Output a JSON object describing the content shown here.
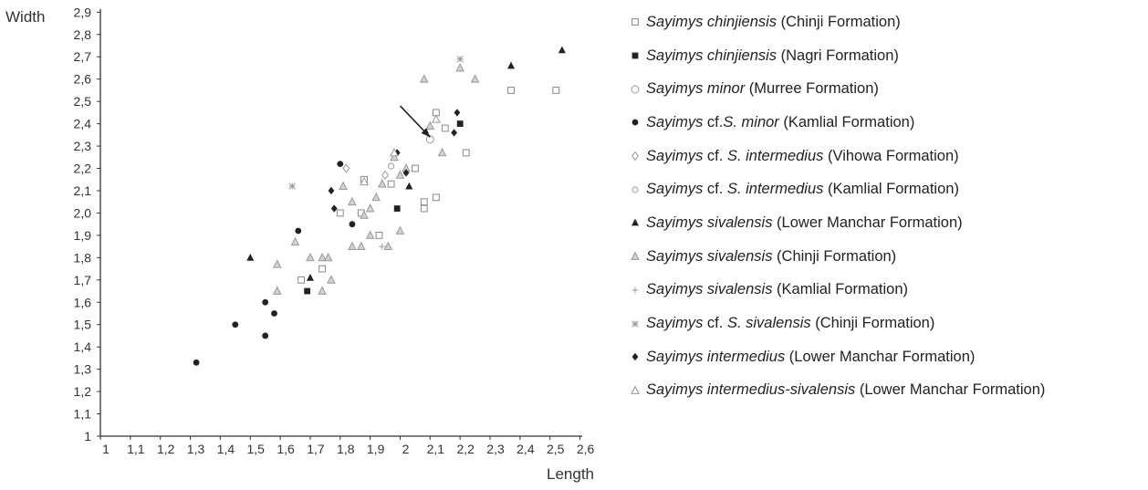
{
  "chart_data": {
    "type": "scatter",
    "xlabel": "Length",
    "ylabel": "Width",
    "xlim": [
      1,
      2.65
    ],
    "ylim": [
      1,
      2.93
    ],
    "x_ticks": [
      "1",
      "1,1",
      "1,2",
      "1,3",
      "1,4",
      "1,5",
      "1,6",
      "1,7",
      "1,8",
      "1,9",
      "2",
      "2,1",
      "2,2",
      "2,3",
      "2,4",
      "2,5",
      "2,6"
    ],
    "y_ticks": [
      "1",
      "1,1",
      "1,2",
      "1,3",
      "1,4",
      "1,5",
      "1,6",
      "1,7",
      "1,8",
      "1,9",
      "2,0",
      "2,1",
      "2,2",
      "2,3",
      "2,4",
      "2,5",
      "2,6",
      "2,7",
      "2,8",
      "2,9"
    ],
    "grid": false,
    "legend_position": "right",
    "arrow": {
      "from": [
        2.0,
        2.48
      ],
      "to": [
        2.1,
        2.34
      ]
    },
    "series": [
      {
        "species": "Sayimys chinjiensis",
        "rest": " (Chinji Formation)",
        "marker": "square-open",
        "color": "#888888",
        "points": [
          [
            1.67,
            1.7
          ],
          [
            1.74,
            1.75
          ],
          [
            1.8,
            2.0
          ],
          [
            1.87,
            2.0
          ],
          [
            1.88,
            2.15
          ],
          [
            1.93,
            1.9
          ],
          [
            1.97,
            2.13
          ],
          [
            2.05,
            2.2
          ],
          [
            2.08,
            2.05
          ],
          [
            2.08,
            2.02
          ],
          [
            2.12,
            2.07
          ],
          [
            2.12,
            2.45
          ],
          [
            2.15,
            2.38
          ],
          [
            2.22,
            2.27
          ],
          [
            2.37,
            2.55
          ],
          [
            2.52,
            2.55
          ]
        ]
      },
      {
        "species": "Sayimys chinjiensis",
        "rest": " (Nagri Formation)",
        "marker": "square-filled",
        "color": "#222222",
        "points": [
          [
            1.69,
            1.65
          ],
          [
            1.99,
            2.02
          ],
          [
            2.2,
            2.4
          ]
        ]
      },
      {
        "species": "Sayimys minor",
        "rest": " (Murree Formation)",
        "marker": "circle-open",
        "color": "#999999",
        "points": [
          [
            2.1,
            2.33
          ]
        ]
      },
      {
        "species": "Sayimys",
        "mid": " cf.",
        "species2": "S. minor",
        "rest": " (Kamlial Formation)",
        "marker": "circle-filled",
        "color": "#222222",
        "points": [
          [
            1.32,
            1.33
          ],
          [
            1.45,
            1.5
          ],
          [
            1.55,
            1.45
          ],
          [
            1.55,
            1.6
          ],
          [
            1.58,
            1.55
          ],
          [
            1.66,
            1.92
          ],
          [
            1.8,
            2.22
          ],
          [
            1.84,
            1.95
          ]
        ]
      },
      {
        "species": "Sayimys",
        "mid": " cf. ",
        "species2": "S. intermedius",
        "rest": " (Vihowa Formation)",
        "marker": "diamond-open",
        "color": "#999999",
        "points": [
          [
            1.82,
            2.2
          ],
          [
            1.95,
            2.17
          ]
        ]
      },
      {
        "species": "Sayimys",
        "mid": " cf. ",
        "species2": "S. intermedius",
        "rest": " (Kamlial Formation)",
        "marker": "circle-open-small",
        "color": "#999999",
        "points": [
          [
            1.97,
            2.21
          ]
        ]
      },
      {
        "species": "Sayimys sivalensis",
        "rest": " (Lower Manchar Formation)",
        "marker": "triangle-filled",
        "color": "#222222",
        "points": [
          [
            1.5,
            1.8
          ],
          [
            1.7,
            1.71
          ],
          [
            2.03,
            2.12
          ],
          [
            2.37,
            2.66
          ],
          [
            2.54,
            2.73
          ]
        ]
      },
      {
        "species": "Sayimys sivalensis",
        "rest": " (Chinji Formation)",
        "marker": "triangle-gray",
        "color": "#999999",
        "points": [
          [
            1.59,
            1.77
          ],
          [
            1.59,
            1.65
          ],
          [
            1.65,
            1.87
          ],
          [
            1.7,
            1.8
          ],
          [
            1.74,
            1.8
          ],
          [
            1.74,
            1.65
          ],
          [
            1.76,
            1.8
          ],
          [
            1.77,
            1.7
          ],
          [
            1.81,
            2.12
          ],
          [
            1.84,
            1.85
          ],
          [
            1.84,
            2.05
          ],
          [
            1.87,
            1.85
          ],
          [
            1.88,
            1.99
          ],
          [
            1.9,
            2.02
          ],
          [
            1.9,
            1.9
          ],
          [
            1.92,
            2.07
          ],
          [
            1.94,
            2.13
          ],
          [
            1.96,
            1.85
          ],
          [
            1.98,
            2.25
          ],
          [
            2.0,
            1.92
          ],
          [
            2.0,
            2.17
          ],
          [
            2.02,
            2.2
          ],
          [
            2.08,
            2.6
          ],
          [
            2.1,
            2.39
          ],
          [
            2.14,
            2.27
          ],
          [
            2.2,
            2.65
          ],
          [
            2.25,
            2.6
          ]
        ]
      },
      {
        "species": "Sayimys sivalensis",
        "rest": " (Kamlial Formation)",
        "marker": "plus",
        "color": "#999999",
        "points": [
          [
            1.94,
            1.85
          ]
        ]
      },
      {
        "species": "Sayimys",
        "mid": " cf. ",
        "species2": "S. sivalensis",
        "rest": " (Chinji Formation)",
        "marker": "asterisk",
        "color": "#999999",
        "points": [
          [
            1.64,
            2.12
          ],
          [
            2.2,
            2.69
          ]
        ]
      },
      {
        "species": "Sayimys intermedius",
        "rest": " (Lower Manchar Formation)",
        "marker": "diamond-filled",
        "color": "#222222",
        "points": [
          [
            1.77,
            2.1
          ],
          [
            1.78,
            2.02
          ],
          [
            1.99,
            2.27
          ],
          [
            2.02,
            2.18
          ],
          [
            2.18,
            2.36
          ],
          [
            2.19,
            2.45
          ]
        ]
      },
      {
        "species": "Sayimys intermedius-sivalensis",
        "rest": " (Lower Manchar Formation)",
        "marker": "triangle-open",
        "color": "#999999",
        "points": [
          [
            1.88,
            2.14
          ],
          [
            1.98,
            2.27
          ],
          [
            2.12,
            2.42
          ]
        ]
      }
    ]
  }
}
